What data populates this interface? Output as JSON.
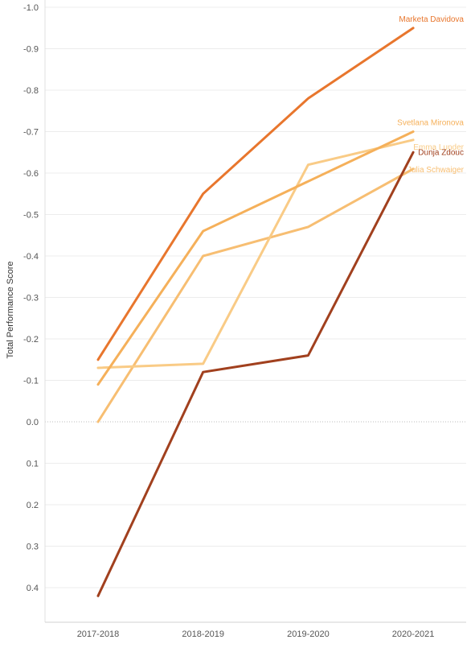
{
  "chart_data": {
    "type": "line",
    "title": "",
    "xlabel": "",
    "ylabel": "Total Performance Score",
    "categories": [
      "2017-2018",
      "2018-2019",
      "2019-2020",
      "2020-2021"
    ],
    "y_axis": {
      "reversed": true,
      "ylim": [
        -1.0,
        0.5
      ],
      "tick_values": [
        -1.0,
        -0.9,
        -0.8,
        -0.7,
        -0.6,
        -0.5,
        -0.4,
        -0.3,
        -0.2,
        -0.1,
        0.0,
        0.1,
        0.2,
        0.3,
        0.4
      ],
      "tick_labels": [
        "-1.0",
        "-0.9",
        "-0.8",
        "-0.7",
        "-0.6",
        "-0.5",
        "-0.4",
        "-0.3",
        "-0.2",
        "-0.1",
        "0.0",
        "0.1",
        "0.2",
        "0.3",
        "0.4"
      ]
    },
    "grid": true,
    "legend": "direct labels at line ends",
    "series": [
      {
        "name": "Marketa Davidova",
        "color": "#e8762d",
        "values": [
          -0.15,
          -0.55,
          -0.78,
          -0.95
        ]
      },
      {
        "name": "Svetlana Mironova",
        "color": "#f5b05a",
        "values": [
          -0.09,
          -0.46,
          -0.58,
          -0.7
        ]
      },
      {
        "name": "Emma Lunder",
        "color": "#f9cb86",
        "values": [
          -0.13,
          -0.14,
          -0.62,
          -0.68
        ]
      },
      {
        "name": "Dunja Zdouc",
        "color": "#a1401e",
        "values": [
          0.42,
          -0.12,
          -0.16,
          -0.65
        ]
      },
      {
        "name": "Julia Schwaiger",
        "color": "#f7be72",
        "values": [
          0.0,
          -0.4,
          -0.47,
          -0.61
        ]
      }
    ]
  }
}
